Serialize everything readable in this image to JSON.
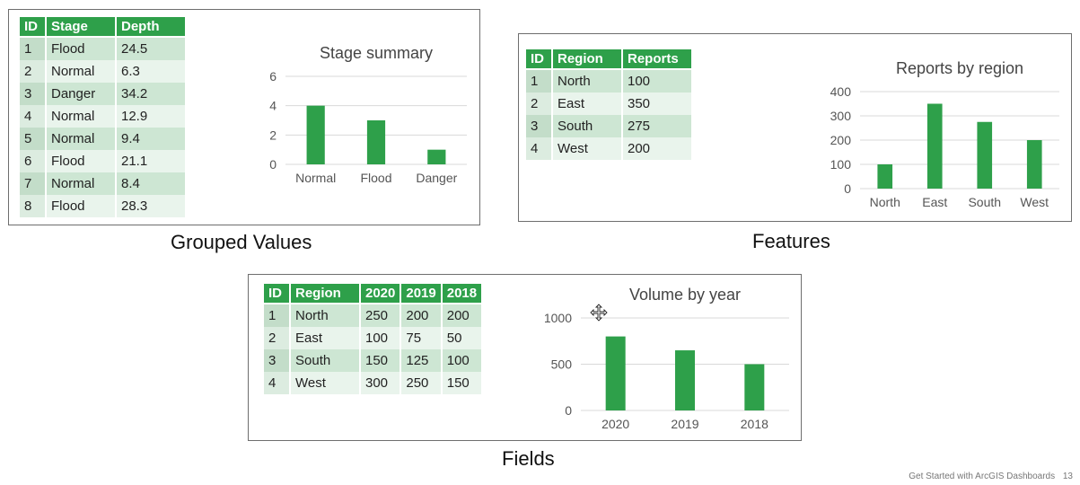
{
  "colors": {
    "accent": "#2ea04a",
    "row_odd": "#cde6d3",
    "row_even": "#e9f4ec"
  },
  "panels": {
    "grouped": {
      "caption": "Grouped Values",
      "table": {
        "headers": [
          "ID",
          "Stage",
          "Depth"
        ],
        "rows": [
          [
            "1",
            "Flood",
            "24.5"
          ],
          [
            "2",
            "Normal",
            "6.3"
          ],
          [
            "3",
            "Danger",
            "34.2"
          ],
          [
            "4",
            "Normal",
            "12.9"
          ],
          [
            "5",
            "Normal",
            "9.4"
          ],
          [
            "6",
            "Flood",
            "21.1"
          ],
          [
            "7",
            "Normal",
            "8.4"
          ],
          [
            "8",
            "Flood",
            "28.3"
          ]
        ]
      }
    },
    "features": {
      "caption": "Features",
      "table": {
        "headers": [
          "ID",
          "Region",
          "Reports"
        ],
        "rows": [
          [
            "1",
            "North",
            "100"
          ],
          [
            "2",
            "East",
            "350"
          ],
          [
            "3",
            "South",
            "275"
          ],
          [
            "4",
            "West",
            "200"
          ]
        ]
      }
    },
    "fields": {
      "caption": "Fields",
      "table": {
        "headers": [
          "ID",
          "Region",
          "2020",
          "2019",
          "2018"
        ],
        "rows": [
          [
            "1",
            "North",
            "250",
            "200",
            "200"
          ],
          [
            "2",
            "East",
            "100",
            "75",
            "50"
          ],
          [
            "3",
            "South",
            "150",
            "125",
            "100"
          ],
          [
            "4",
            "West",
            "300",
            "250",
            "150"
          ]
        ]
      }
    }
  },
  "chart_data": [
    {
      "id": "stage",
      "type": "bar",
      "title": "Stage summary",
      "categories": [
        "Normal",
        "Flood",
        "Danger"
      ],
      "values": [
        4,
        3,
        1
      ],
      "yticks": [
        "0",
        "2",
        "4",
        "6"
      ],
      "ylim": [
        0,
        6
      ],
      "grid": true,
      "color": "#2ea04a"
    },
    {
      "id": "region",
      "type": "bar",
      "title": "Reports by region",
      "categories": [
        "North",
        "East",
        "South",
        "West"
      ],
      "values": [
        100,
        350,
        275,
        200
      ],
      "yticks": [
        "0",
        "100",
        "200",
        "300",
        "400"
      ],
      "ylim": [
        0,
        400
      ],
      "grid": true,
      "color": "#2ea04a"
    },
    {
      "id": "year",
      "type": "bar",
      "title": "Volume by year",
      "categories": [
        "2020",
        "2019",
        "2018"
      ],
      "values": [
        800,
        650,
        500
      ],
      "yticks": [
        "0",
        "500",
        "1000"
      ],
      "ylim": [
        0,
        1000
      ],
      "grid": true,
      "color": "#2ea04a"
    }
  ],
  "footer": {
    "text": "Get Started with ArcGIS Dashboards",
    "page": "13"
  },
  "cursor": {
    "icon": "move-cursor-icon"
  }
}
